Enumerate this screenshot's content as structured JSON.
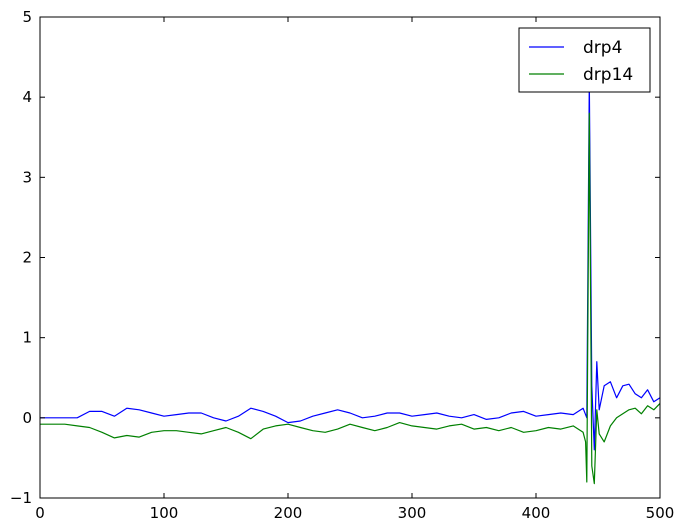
{
  "chart_data": {
    "type": "line",
    "title": "",
    "xlabel": "",
    "ylabel": "",
    "xlim": [
      0,
      500
    ],
    "ylim": [
      -1,
      5
    ],
    "xticks": [
      0,
      100,
      200,
      300,
      400,
      500
    ],
    "yticks": [
      -1,
      0,
      1,
      2,
      3,
      4,
      5
    ],
    "grid": false,
    "legend_position": "top-right",
    "series": [
      {
        "name": "drp4",
        "color": "#0000ff",
        "points": [
          [
            0,
            0.0
          ],
          [
            10,
            0.0
          ],
          [
            20,
            0.0
          ],
          [
            30,
            0.0
          ],
          [
            40,
            0.08
          ],
          [
            50,
            0.08
          ],
          [
            60,
            0.02
          ],
          [
            70,
            0.12
          ],
          [
            80,
            0.1
          ],
          [
            90,
            0.06
          ],
          [
            100,
            0.02
          ],
          [
            110,
            0.04
          ],
          [
            120,
            0.06
          ],
          [
            130,
            0.06
          ],
          [
            140,
            0.0
          ],
          [
            150,
            -0.04
          ],
          [
            160,
            0.02
          ],
          [
            170,
            0.12
          ],
          [
            180,
            0.08
          ],
          [
            190,
            0.02
          ],
          [
            200,
            -0.06
          ],
          [
            210,
            -0.04
          ],
          [
            220,
            0.02
          ],
          [
            230,
            0.06
          ],
          [
            240,
            0.1
          ],
          [
            250,
            0.06
          ],
          [
            260,
            0.0
          ],
          [
            270,
            0.02
          ],
          [
            280,
            0.06
          ],
          [
            290,
            0.06
          ],
          [
            300,
            0.02
          ],
          [
            310,
            0.04
          ],
          [
            320,
            0.06
          ],
          [
            330,
            0.02
          ],
          [
            340,
            0.0
          ],
          [
            350,
            0.04
          ],
          [
            360,
            -0.02
          ],
          [
            370,
            0.0
          ],
          [
            380,
            0.06
          ],
          [
            390,
            0.08
          ],
          [
            400,
            0.02
          ],
          [
            410,
            0.04
          ],
          [
            420,
            0.06
          ],
          [
            430,
            0.04
          ],
          [
            438,
            0.12
          ],
          [
            441,
            0.0
          ],
          [
            443,
            4.2
          ],
          [
            445,
            0.4
          ],
          [
            447,
            -0.4
          ],
          [
            449,
            0.7
          ],
          [
            451,
            0.1
          ],
          [
            455,
            0.4
          ],
          [
            460,
            0.45
          ],
          [
            465,
            0.25
          ],
          [
            470,
            0.4
          ],
          [
            475,
            0.42
          ],
          [
            480,
            0.3
          ],
          [
            485,
            0.25
          ],
          [
            490,
            0.35
          ],
          [
            495,
            0.2
          ],
          [
            500,
            0.25
          ]
        ]
      },
      {
        "name": "drp14",
        "color": "#008000",
        "points": [
          [
            0,
            -0.08
          ],
          [
            10,
            -0.08
          ],
          [
            20,
            -0.08
          ],
          [
            30,
            -0.1
          ],
          [
            40,
            -0.12
          ],
          [
            50,
            -0.18
          ],
          [
            60,
            -0.25
          ],
          [
            70,
            -0.22
          ],
          [
            80,
            -0.24
          ],
          [
            90,
            -0.18
          ],
          [
            100,
            -0.16
          ],
          [
            110,
            -0.16
          ],
          [
            120,
            -0.18
          ],
          [
            130,
            -0.2
          ],
          [
            140,
            -0.16
          ],
          [
            150,
            -0.12
          ],
          [
            160,
            -0.18
          ],
          [
            170,
            -0.26
          ],
          [
            180,
            -0.14
          ],
          [
            190,
            -0.1
          ],
          [
            200,
            -0.08
          ],
          [
            210,
            -0.12
          ],
          [
            220,
            -0.16
          ],
          [
            230,
            -0.18
          ],
          [
            240,
            -0.14
          ],
          [
            250,
            -0.08
          ],
          [
            260,
            -0.12
          ],
          [
            270,
            -0.16
          ],
          [
            280,
            -0.12
          ],
          [
            290,
            -0.06
          ],
          [
            300,
            -0.1
          ],
          [
            310,
            -0.12
          ],
          [
            320,
            -0.14
          ],
          [
            330,
            -0.1
          ],
          [
            340,
            -0.08
          ],
          [
            350,
            -0.14
          ],
          [
            360,
            -0.12
          ],
          [
            370,
            -0.16
          ],
          [
            380,
            -0.12
          ],
          [
            390,
            -0.18
          ],
          [
            400,
            -0.16
          ],
          [
            410,
            -0.12
          ],
          [
            420,
            -0.14
          ],
          [
            430,
            -0.1
          ],
          [
            438,
            -0.18
          ],
          [
            440,
            -0.3
          ],
          [
            441,
            -0.8
          ],
          [
            443,
            3.8
          ],
          [
            445,
            -0.6
          ],
          [
            447,
            -0.82
          ],
          [
            449,
            0.1
          ],
          [
            451,
            -0.2
          ],
          [
            455,
            -0.3
          ],
          [
            460,
            -0.1
          ],
          [
            465,
            0.0
          ],
          [
            470,
            0.05
          ],
          [
            475,
            0.1
          ],
          [
            480,
            0.12
          ],
          [
            485,
            0.05
          ],
          [
            490,
            0.15
          ],
          [
            495,
            0.1
          ],
          [
            500,
            0.18
          ]
        ]
      }
    ]
  }
}
